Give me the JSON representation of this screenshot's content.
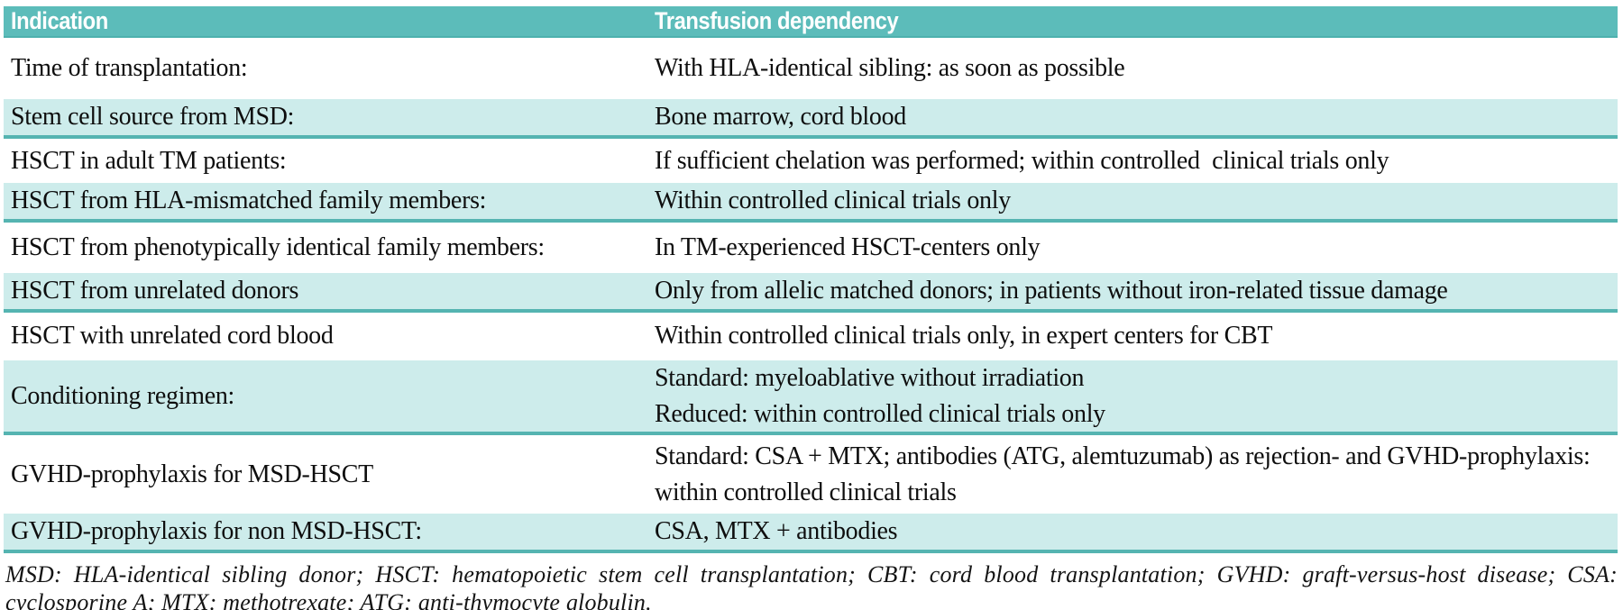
{
  "table": {
    "headers": [
      "Indication",
      "Transfusion dependency"
    ],
    "rows": [
      {
        "indication": "Time of transplantation:",
        "dependency": "With HLA-identical sibling: as soon as possible"
      },
      {
        "indication": "Stem cell source from MSD:",
        "dependency": "Bone marrow, cord blood"
      },
      {
        "indication": "HSCT in adult TM patients:",
        "dependency": "If sufficient chelation was performed; within controlled  clinical trials only"
      },
      {
        "indication": "HSCT from HLA-mismatched family members:",
        "dependency": "Within controlled clinical trials only"
      },
      {
        "indication": "HSCT from phenotypically identical family members:",
        "dependency": "In TM-experienced HSCT-centers only"
      },
      {
        "indication": "HSCT from unrelated donors",
        "dependency": "Only from allelic matched donors; in patients without iron-related tissue damage"
      },
      {
        "indication": "HSCT with unrelated cord blood",
        "dependency": "Within controlled clinical trials only, in expert centers for CBT"
      },
      {
        "indication": "Conditioning regimen:",
        "dependency": "Standard: myeloablative without irradiation",
        "dependency_line2": "Reduced: within controlled clinical trials only"
      },
      {
        "indication": "GVHD-prophylaxis for MSD-HSCT",
        "dependency": "Standard: CSA + MTX; antibodies (ATG, alemtuzumab) as rejection- and GVHD-prophylaxis:",
        "dependency_line2": "within controlled clinical trials"
      },
      {
        "indication": "GVHD-prophylaxis for non MSD-HSCT:",
        "dependency": "CSA, MTX + antibodies"
      }
    ]
  },
  "footnote": "MSD: HLA-identical sibling donor; HSCT: hematopoietic stem cell transplantation; CBT: cord blood transplantation; GVHD: graft-versus-host disease; CSA: cyclosporine A; MTX: methotrexate; ATG: anti-thymocyte globulin.",
  "colors": {
    "header_bg": "#5cbcba",
    "header_text": "#ffffff",
    "row_tint_bg": "#cdeceb",
    "row_border": "#55b4b1",
    "body_text": "#0e0e0e"
  }
}
